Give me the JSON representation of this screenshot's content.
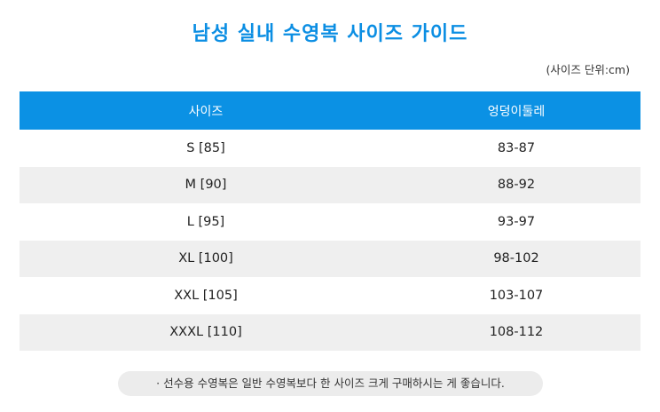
{
  "title": "남성 실내 수영복 사이즈  가이드",
  "unit_note": "(사이즈 단위:cm)",
  "table": {
    "headers": [
      "사이즈",
      "엉덩이둘레"
    ],
    "rows": [
      [
        "S [85]",
        "83-87"
      ],
      [
        "M [90]",
        "88-92"
      ],
      [
        "L [95]",
        "93-97"
      ],
      [
        "XL [100]",
        "98-102"
      ],
      [
        "XXL [105]",
        "103-107"
      ],
      [
        "XXXL [110]",
        "108-112"
      ]
    ]
  },
  "footnote": "· 선수용 수영복은 일반 수영복보다 한 사이즈 크게 구매하시는 게 좋습니다.",
  "colors": {
    "title": "#0b8ee3",
    "header_bg": "#0b91e4",
    "stripe_bg": "#efefef",
    "pill_bg": "#ececec"
  }
}
